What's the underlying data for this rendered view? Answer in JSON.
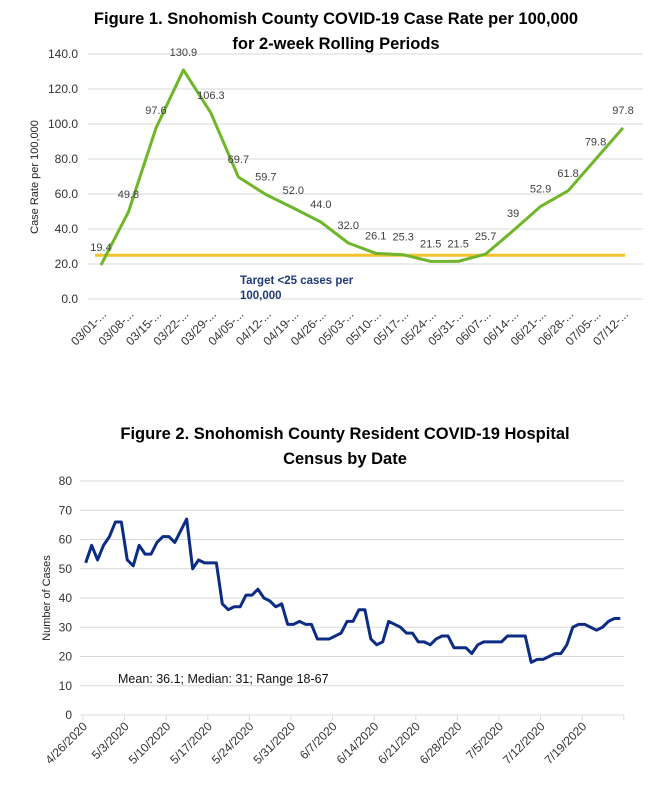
{
  "chart_data": [
    {
      "type": "line",
      "title_lines": [
        "Figure 1. Snohomish County COVID-19 Case Rate per 100,000",
        "for 2-week Rolling Periods"
      ],
      "xlabel": "",
      "ylabel": "Case Rate per 100,000",
      "ylim": [
        0,
        140
      ],
      "yticks": [
        "0.0",
        "20.0",
        "40.0",
        "60.0",
        "80.0",
        "100.0",
        "120.0",
        "140.0"
      ],
      "grid": true,
      "categories": [
        "03/01-...",
        "03/08-...",
        "03/15-...",
        "03/22-...",
        "03/29-...",
        "04/05-...",
        "04/12-...",
        "04/19-...",
        "04/26-...",
        "05/03-...",
        "05/10-...",
        "05/17-...",
        "05/24-...",
        "05/31-...",
        "06/07-...",
        "06/14-...",
        "06/21-...",
        "06/28-...",
        "07/05-...",
        "07/12-..."
      ],
      "values": [
        19.4,
        49.8,
        97.6,
        130.9,
        106.3,
        69.7,
        59.7,
        52.0,
        44.0,
        32.0,
        26.1,
        25.3,
        21.5,
        21.5,
        25.7,
        39,
        52.9,
        61.8,
        79.8,
        97.8
      ],
      "data_labels": [
        "19.4",
        "49.8",
        "97.6",
        "130.9",
        "106.3",
        "69.7",
        "59.7",
        "52.0",
        "44.0",
        "32.0",
        "26.1",
        "25.3",
        "21.5",
        "21.5",
        "25.7",
        "39",
        "52.9",
        "61.8",
        "79.8",
        "97.8"
      ],
      "line_color": "#70b62b",
      "target": {
        "value": 25,
        "color": "#f5c12e",
        "label_lines": [
          "Target <25 cases per",
          "100,000"
        ],
        "label_color": "#1f3a7a"
      }
    },
    {
      "type": "line",
      "title_lines": [
        "Figure 2. Snohomish County Resident COVID-19 Hospital",
        "Census by Date"
      ],
      "xlabel": "",
      "ylabel": "Number of Cases",
      "ylim": [
        0,
        80
      ],
      "yticks": [
        "0",
        "10",
        "20",
        "30",
        "40",
        "50",
        "60",
        "70",
        "80"
      ],
      "grid": true,
      "xticks": [
        "4/26/2020",
        "5/3/2020",
        "5/10/2020",
        "5/17/2020",
        "5/24/2020",
        "5/31/2020",
        "6/7/2020",
        "6/14/2020",
        "6/21/2020",
        "6/28/2020",
        "7/5/2020",
        "7/12/2020",
        "7/19/2020"
      ],
      "x_range": [
        "4/26/2020",
        "7/25/2020"
      ],
      "values": [
        52,
        58,
        53,
        58,
        61,
        66,
        66,
        53,
        51,
        58,
        55,
        55,
        59,
        61,
        61,
        59,
        63,
        67,
        50,
        53,
        52,
        52,
        52,
        38,
        36,
        37,
        37,
        41,
        41,
        43,
        40,
        39,
        37,
        38,
        31,
        31,
        32,
        31,
        31,
        26,
        26,
        26,
        27,
        28,
        32,
        32,
        36,
        36,
        26,
        24,
        25,
        32,
        31,
        30,
        28,
        28,
        25,
        25,
        24,
        26,
        27,
        27,
        23,
        23,
        23,
        21,
        24,
        25,
        25,
        25,
        25,
        27,
        27,
        27,
        27,
        18,
        19,
        19,
        20,
        21,
        21,
        24,
        30,
        31,
        31,
        30,
        29,
        30,
        32,
        33,
        33
      ],
      "line_color": "#0c2d83",
      "annotation": "Mean: 36.1; Median: 31; Range 18-67"
    }
  ]
}
